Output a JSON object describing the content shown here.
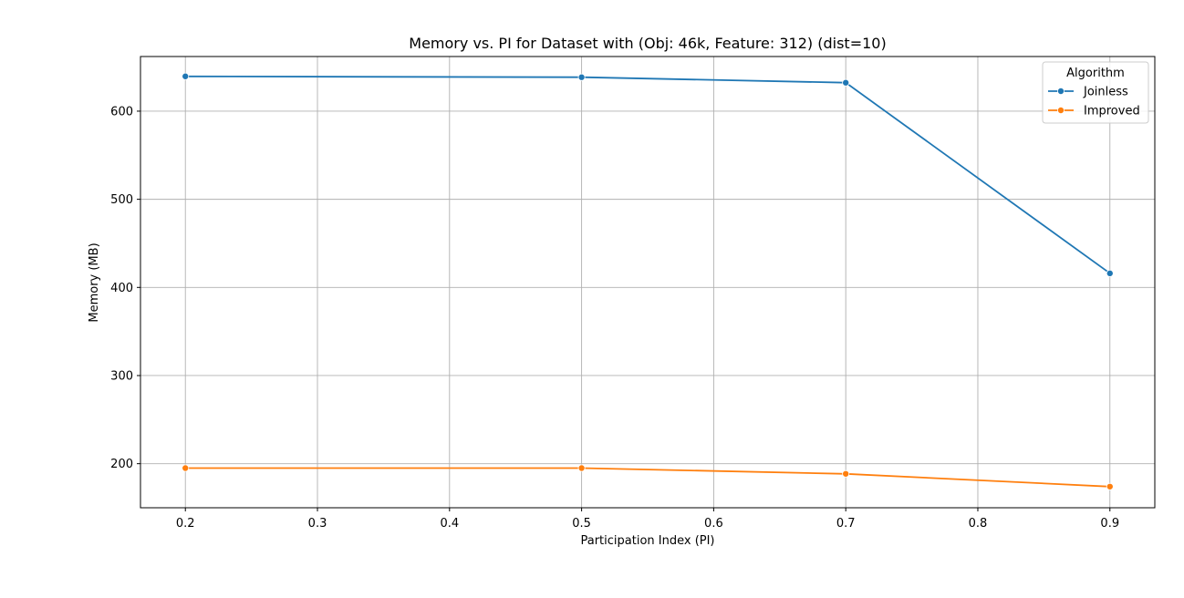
{
  "chart_data": {
    "type": "line",
    "title": "Memory vs. PI for Dataset with (Obj: 46k, Feature: 312) (dist=10)",
    "xlabel": "Participation Index (PI)",
    "ylabel": "Memory (MB)",
    "xlim": [
      0.166,
      0.934
    ],
    "ylim": [
      150,
      662
    ],
    "xticks": [
      0.2,
      0.3,
      0.4,
      0.5,
      0.6,
      0.7,
      0.8,
      0.9
    ],
    "xtick_labels": [
      "0.2",
      "0.3",
      "0.4",
      "0.5",
      "0.6",
      "0.7",
      "0.8",
      "0.9"
    ],
    "yticks": [
      200,
      300,
      400,
      500,
      600
    ],
    "ytick_labels": [
      "200",
      "300",
      "400",
      "500",
      "600"
    ],
    "grid": true,
    "legend": {
      "title": "Algorithm",
      "placement": "top-right"
    },
    "series": [
      {
        "name": "Joinless",
        "color": "#1f77b4",
        "marker": "circle",
        "x": [
          0.2,
          0.5,
          0.7,
          0.9
        ],
        "y": [
          639.5,
          638.5,
          632.3,
          416.0
        ]
      },
      {
        "name": "Improved",
        "color": "#ff7f0e",
        "marker": "circle",
        "x": [
          0.2,
          0.5,
          0.7,
          0.9
        ],
        "y": [
          195.0,
          195.0,
          188.5,
          174.0
        ]
      }
    ]
  }
}
